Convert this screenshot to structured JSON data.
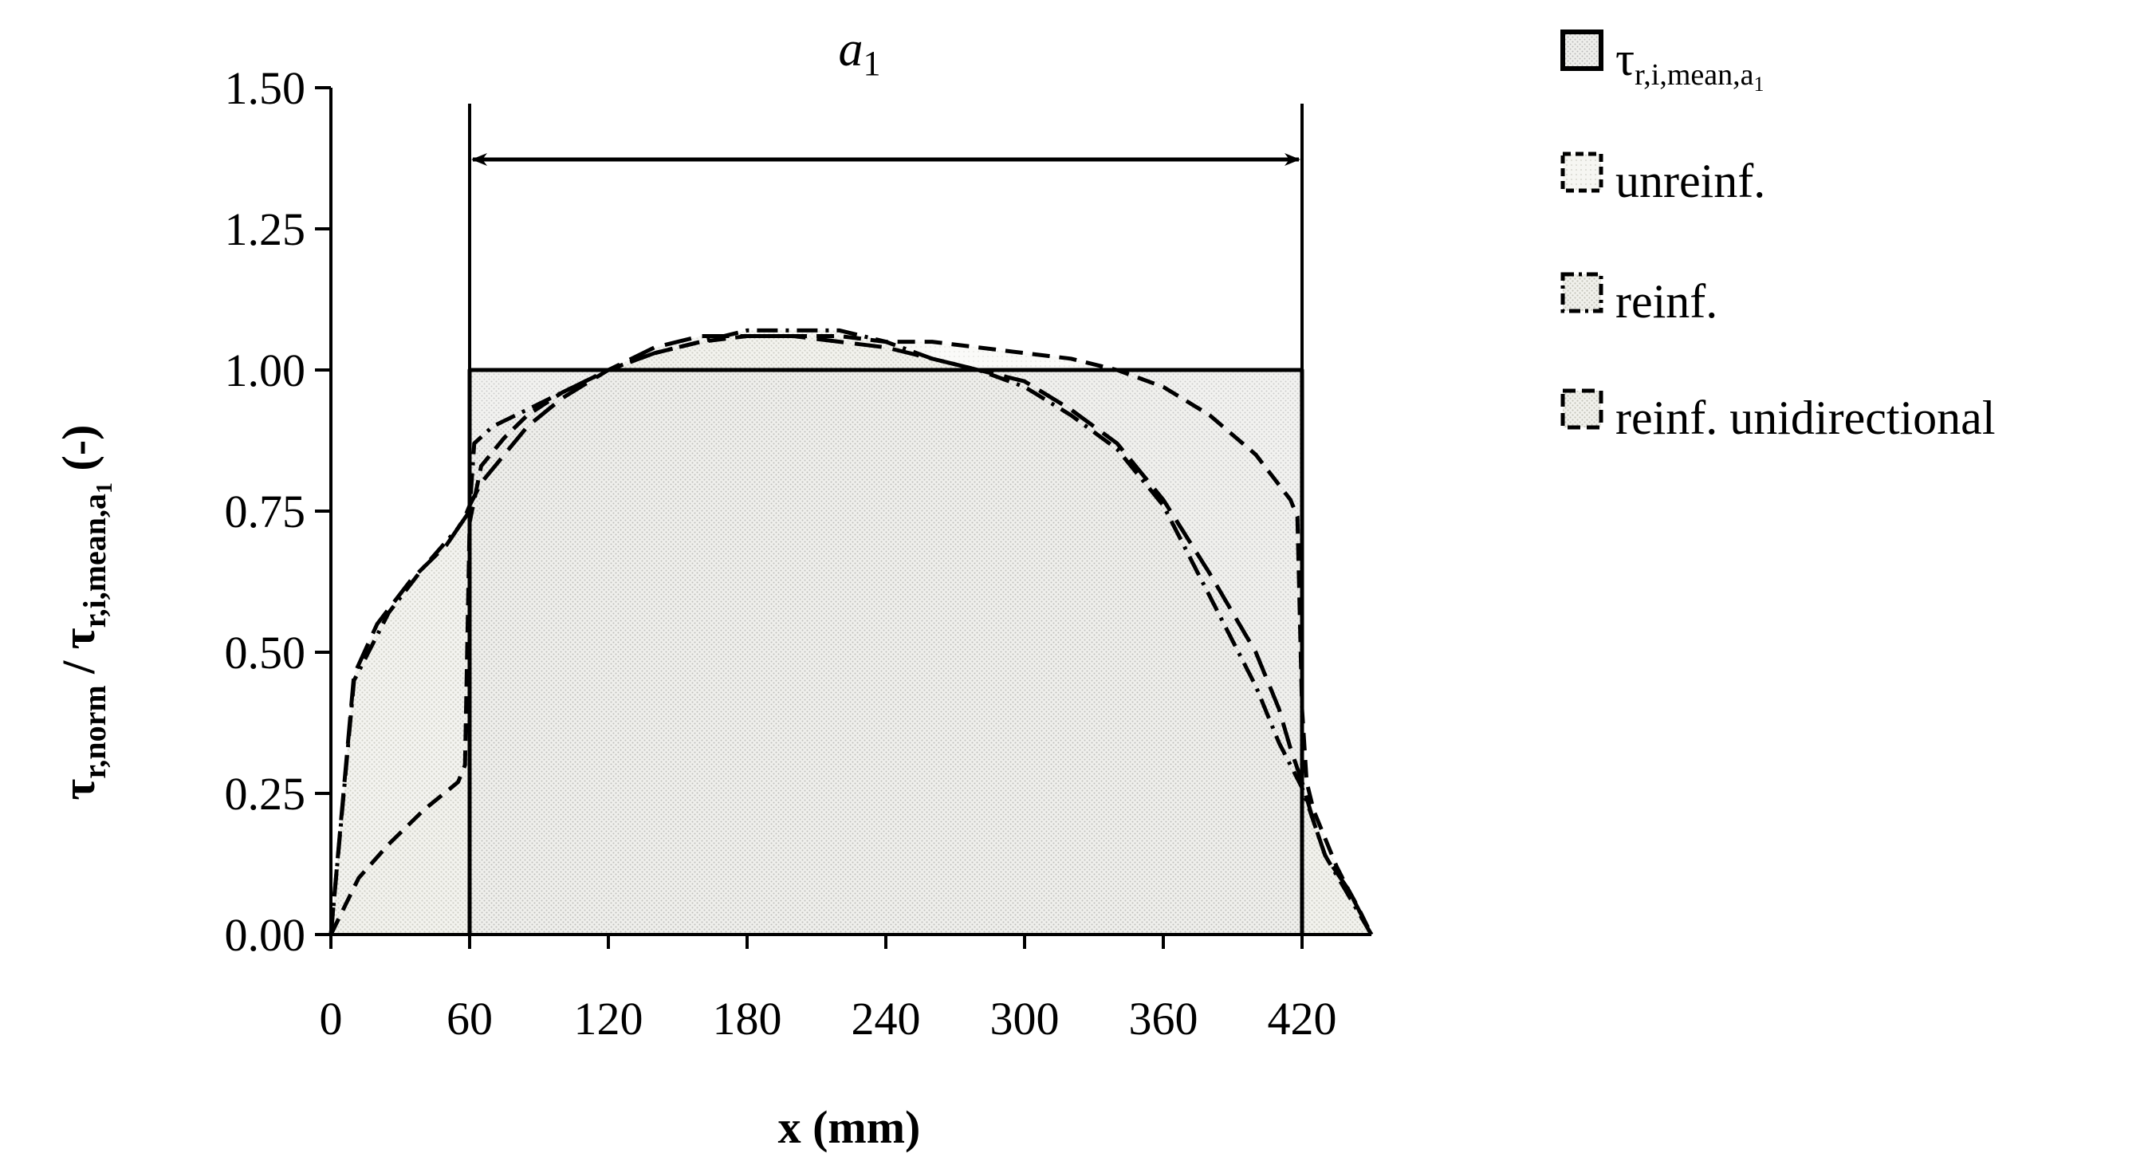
{
  "chart_data": {
    "type": "area",
    "xlabel": "x (mm)",
    "ylabel_main": "τ",
    "ylabel_main_sub": "r,norm",
    "ylabel_sep": " / ",
    "ylabel_ref": "τ",
    "ylabel_ref_sub": "r,i,mean,a",
    "ylabel_ref_subsub": "1",
    "ylabel_unit": " (-)",
    "xlim": [
      0,
      450
    ],
    "ylim": [
      0,
      1.5
    ],
    "x_ticks": [
      "0",
      "60",
      "120",
      "180",
      "240",
      "300",
      "360",
      "420"
    ],
    "x_tick_values": [
      0,
      60,
      120,
      180,
      240,
      300,
      360,
      420
    ],
    "y_ticks": [
      "0.00",
      "0.25",
      "0.50",
      "0.75",
      "1.00",
      "1.25",
      "1.50"
    ],
    "y_tick_values": [
      0,
      0.25,
      0.5,
      0.75,
      1.0,
      1.25,
      1.5
    ],
    "grid": false,
    "legend_position": "right",
    "dimension": {
      "label": "a",
      "label_sub": "1",
      "x_start": 60,
      "x_end": 420
    },
    "series": [
      {
        "name": "τ",
        "name_sub": "r,i,mean,a",
        "name_subsub": "1",
        "style": "mean",
        "x": [
          60,
          60,
          420,
          420
        ],
        "y": [
          0,
          1.0,
          1.0,
          0
        ]
      },
      {
        "name": "unreinf.",
        "style": "dashed",
        "x": [
          0,
          12,
          25,
          40,
          55,
          58,
          60,
          65,
          75,
          85,
          100,
          120,
          140,
          160,
          180,
          200,
          220,
          240,
          260,
          280,
          300,
          320,
          340,
          360,
          380,
          400,
          415,
          418,
          420,
          422,
          425,
          430,
          435,
          440,
          444,
          450
        ],
        "y": [
          0,
          0.1,
          0.16,
          0.22,
          0.27,
          0.3,
          0.73,
          0.83,
          0.88,
          0.92,
          0.96,
          1.0,
          1.03,
          1.05,
          1.06,
          1.06,
          1.06,
          1.05,
          1.05,
          1.04,
          1.03,
          1.02,
          1.0,
          0.97,
          0.92,
          0.85,
          0.77,
          0.74,
          0.4,
          0.27,
          0.22,
          0.17,
          0.12,
          0.08,
          0.05,
          0
        ]
      },
      {
        "name": "reinf.",
        "style": "dashdot",
        "x": [
          0,
          10,
          25,
          40,
          55,
          60,
          62,
          70,
          85,
          100,
          120,
          140,
          160,
          180,
          200,
          220,
          240,
          260,
          280,
          300,
          320,
          340,
          360,
          380,
          400,
          410,
          415,
          420,
          425,
          430,
          440,
          450
        ],
        "y": [
          0,
          0.45,
          0.57,
          0.65,
          0.72,
          0.75,
          0.87,
          0.9,
          0.93,
          0.96,
          1.0,
          1.03,
          1.05,
          1.07,
          1.07,
          1.07,
          1.05,
          1.02,
          1.0,
          0.97,
          0.92,
          0.86,
          0.76,
          0.6,
          0.44,
          0.34,
          0.3,
          0.26,
          0.2,
          0.14,
          0.07,
          0
        ]
      },
      {
        "name": "reinf. unidirectional",
        "style": "longdash",
        "x": [
          0,
          10,
          20,
          35,
          50,
          55,
          58,
          60,
          65,
          75,
          85,
          100,
          120,
          140,
          160,
          180,
          200,
          220,
          240,
          260,
          280,
          300,
          320,
          340,
          360,
          380,
          400,
          410,
          415,
          420,
          425,
          430,
          440,
          450
        ],
        "y": [
          0,
          0.46,
          0.55,
          0.63,
          0.69,
          0.72,
          0.74,
          0.76,
          0.8,
          0.85,
          0.9,
          0.95,
          1.0,
          1.04,
          1.06,
          1.06,
          1.06,
          1.05,
          1.04,
          1.02,
          1.0,
          0.98,
          0.93,
          0.87,
          0.77,
          0.64,
          0.5,
          0.4,
          0.33,
          0.27,
          0.2,
          0.14,
          0.08,
          0
        ]
      }
    ]
  }
}
